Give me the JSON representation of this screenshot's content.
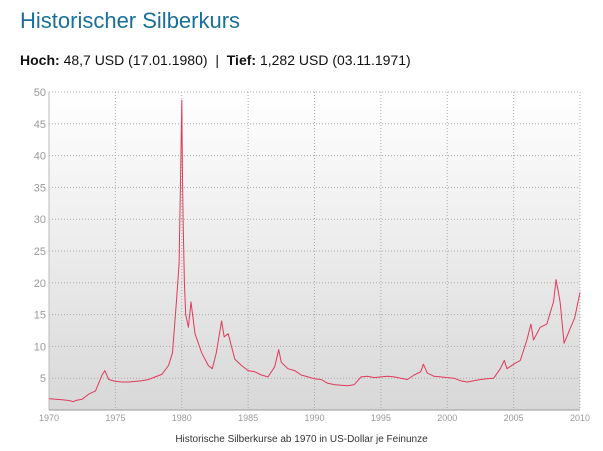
{
  "page": {
    "title": "Historischer Silberkurs",
    "high_label": "Hoch:",
    "high_value": "48,7 USD (17.01.1980)",
    "separator": "|",
    "low_label": "Tief:",
    "low_value": "1,282 USD (03.11.1971)",
    "caption": "Historische Silberkurse ab 1970 in US-Dollar je Feinunze"
  },
  "chart_data": {
    "type": "line",
    "title": "",
    "xlabel": "",
    "ylabel": "",
    "xlim": [
      1970,
      2010
    ],
    "ylim": [
      0,
      50
    ],
    "x_ticks": [
      "1970",
      "1975",
      "1980",
      "1985",
      "1990",
      "1995",
      "2000",
      "2005",
      "2010"
    ],
    "y_ticks": [
      "5",
      "10",
      "15",
      "20",
      "25",
      "30",
      "35",
      "40",
      "45",
      "50"
    ],
    "grid": true,
    "line_color": "#e03a5a",
    "series": [
      {
        "x": [
          1970,
          1970.5,
          1971,
          1971.5,
          1971.85,
          1972,
          1972.5,
          1973,
          1973.5,
          1974,
          1974.2,
          1974.5,
          1975,
          1975.5,
          1976,
          1976.5,
          1977,
          1977.5,
          1978,
          1978.5,
          1979,
          1979.3,
          1979.6,
          1979.8,
          1979.9,
          1980.0,
          1980.05,
          1980.1,
          1980.2,
          1980.3,
          1980.5,
          1980.7,
          1981,
          1981.5,
          1982,
          1982.3,
          1982.6,
          1983,
          1983.2,
          1983.5,
          1984,
          1984.5,
          1985,
          1985.5,
          1986,
          1986.5,
          1987,
          1987.3,
          1987.5,
          1988,
          1988.5,
          1989,
          1989.5,
          1990,
          1990.5,
          1991,
          1991.5,
          1992,
          1992.5,
          1993,
          1993.5,
          1994,
          1994.5,
          1995,
          1995.5,
          1996,
          1996.5,
          1997,
          1997.5,
          1998,
          1998.2,
          1998.5,
          1999,
          1999.5,
          2000,
          2000.5,
          2001,
          2001.5,
          2002,
          2002.5,
          2003,
          2003.5,
          2004,
          2004.3,
          2004.5,
          2005,
          2005.5,
          2006,
          2006.3,
          2006.5,
          2007,
          2007.5,
          2008,
          2008.2,
          2008.5,
          2008.8,
          2009,
          2009.3,
          2009.6,
          2009.9,
          2010
        ],
        "values": [
          1.8,
          1.7,
          1.6,
          1.5,
          1.3,
          1.5,
          1.7,
          2.5,
          3.0,
          5.5,
          6.2,
          4.8,
          4.5,
          4.4,
          4.4,
          4.5,
          4.6,
          4.8,
          5.2,
          5.6,
          7.0,
          9.0,
          17.0,
          23.0,
          35.0,
          48.7,
          38.0,
          30.0,
          20.0,
          15.0,
          13.0,
          17.0,
          12.0,
          9.0,
          7.0,
          6.5,
          9.0,
          14.0,
          11.5,
          12.0,
          8.0,
          7.0,
          6.2,
          6.0,
          5.5,
          5.2,
          6.8,
          9.5,
          7.5,
          6.5,
          6.2,
          5.5,
          5.2,
          4.9,
          4.8,
          4.2,
          4.0,
          3.9,
          3.8,
          4.0,
          5.2,
          5.3,
          5.1,
          5.2,
          5.3,
          5.2,
          5.0,
          4.8,
          5.5,
          6.0,
          7.2,
          5.8,
          5.3,
          5.2,
          5.1,
          5.0,
          4.6,
          4.4,
          4.6,
          4.8,
          4.9,
          5.0,
          6.5,
          7.8,
          6.5,
          7.2,
          7.8,
          11.0,
          13.5,
          11.0,
          13.0,
          13.5,
          17.0,
          20.5,
          17.0,
          10.5,
          11.5,
          13.0,
          14.5,
          17.5,
          18.5
        ]
      }
    ]
  }
}
